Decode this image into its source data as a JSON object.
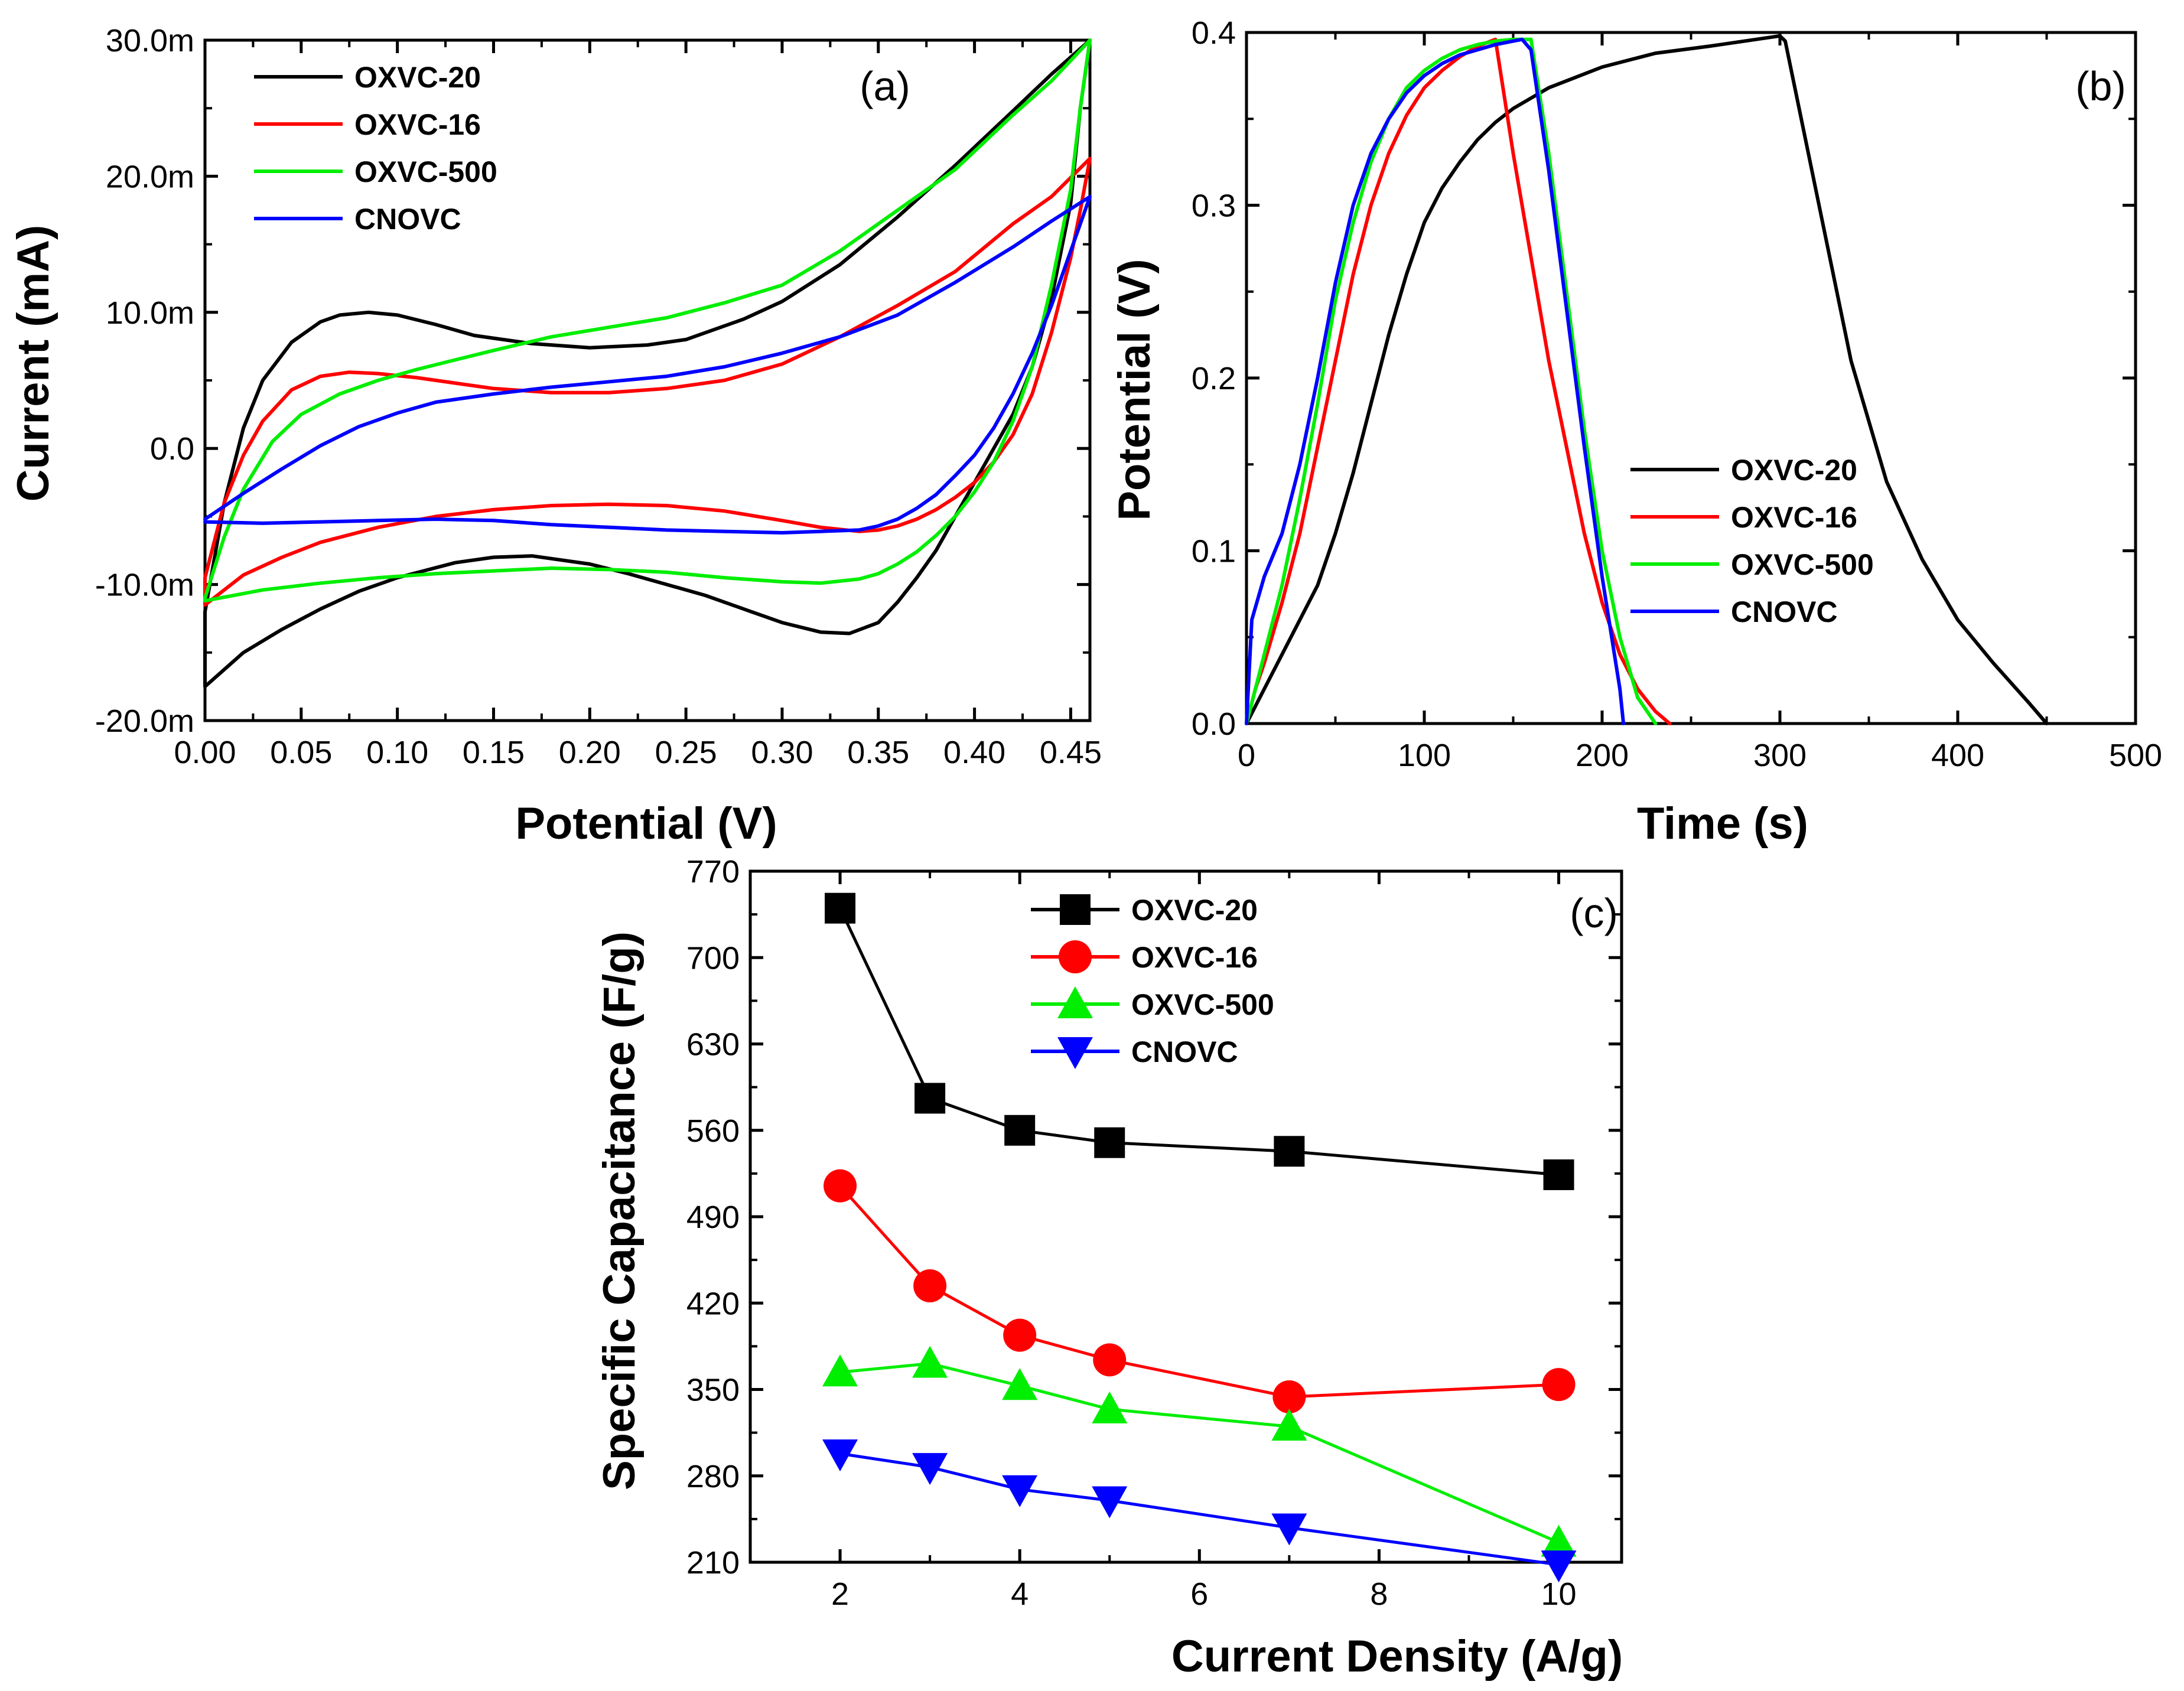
{
  "chart_data": [
    {
      "panel": "(a)",
      "type": "line",
      "xlabel": "Potential (V)",
      "ylabel": "Current (mA)",
      "xlim": [
        0,
        0.46
      ],
      "ylim": [
        -20.0,
        30.0
      ],
      "x_ticks": [
        "0.00",
        "0.05",
        "0.10",
        "0.15",
        "0.20",
        "0.25",
        "0.30",
        "0.35",
        "0.40",
        "0.45"
      ],
      "y_ticks": [
        "-20.0m",
        "-10.0m",
        "0.0",
        "10.0m",
        "20.0m",
        "30.0m"
      ],
      "legend_position": "top-left",
      "series": [
        {
          "name": "OXVC-20",
          "color": "#000000",
          "x": [
            0.0,
            0.01,
            0.02,
            0.03,
            0.045,
            0.06,
            0.07,
            0.085,
            0.1,
            0.12,
            0.14,
            0.17,
            0.2,
            0.23,
            0.25,
            0.28,
            0.3,
            0.33,
            0.36,
            0.39,
            0.42,
            0.44,
            0.46,
            0.455,
            0.45,
            0.44,
            0.43,
            0.42,
            0.41,
            0.4,
            0.39,
            0.38,
            0.37,
            0.36,
            0.35,
            0.335,
            0.32,
            0.3,
            0.28,
            0.26,
            0.24,
            0.22,
            0.2,
            0.17,
            0.15,
            0.13,
            0.1,
            0.08,
            0.06,
            0.04,
            0.02,
            0.0,
            0.0
          ],
          "y": [
            -12.0,
            -4.0,
            1.5,
            5.0,
            7.8,
            9.3,
            9.8,
            10.0,
            9.8,
            9.1,
            8.3,
            7.7,
            7.4,
            7.6,
            8.0,
            9.5,
            10.8,
            13.5,
            17.0,
            20.8,
            24.8,
            27.5,
            30.0,
            25.0,
            18.0,
            11.0,
            6.0,
            2.5,
            0.0,
            -2.5,
            -5.0,
            -7.5,
            -9.5,
            -11.3,
            -12.8,
            -13.6,
            -13.5,
            -12.8,
            -11.8,
            -10.8,
            -10.0,
            -9.2,
            -8.5,
            -7.9,
            -8.0,
            -8.4,
            -9.5,
            -10.5,
            -11.8,
            -13.3,
            -15.0,
            -17.5,
            -12.0
          ]
        },
        {
          "name": "OXVC-16",
          "color": "#ff0000",
          "x": [
            0.0,
            0.01,
            0.02,
            0.03,
            0.045,
            0.06,
            0.075,
            0.09,
            0.11,
            0.13,
            0.15,
            0.18,
            0.21,
            0.24,
            0.27,
            0.3,
            0.33,
            0.36,
            0.39,
            0.42,
            0.44,
            0.46,
            0.455,
            0.45,
            0.44,
            0.43,
            0.42,
            0.41,
            0.4,
            0.39,
            0.38,
            0.37,
            0.36,
            0.35,
            0.34,
            0.32,
            0.3,
            0.27,
            0.24,
            0.21,
            0.18,
            0.15,
            0.12,
            0.09,
            0.06,
            0.04,
            0.02,
            0.0,
            0.0
          ],
          "y": [
            -9.5,
            -4.0,
            -0.5,
            2.0,
            4.3,
            5.3,
            5.6,
            5.5,
            5.2,
            4.8,
            4.4,
            4.1,
            4.1,
            4.4,
            5.0,
            6.2,
            8.2,
            10.5,
            13.0,
            16.5,
            18.5,
            21.3,
            17.5,
            14.0,
            8.5,
            4.0,
            1.0,
            -1.0,
            -2.5,
            -3.6,
            -4.5,
            -5.2,
            -5.7,
            -6.0,
            -6.1,
            -5.8,
            -5.3,
            -4.6,
            -4.2,
            -4.1,
            -4.2,
            -4.5,
            -5.0,
            -5.8,
            -6.9,
            -8.0,
            -9.3,
            -11.5,
            -9.5
          ]
        },
        {
          "name": "OXVC-500",
          "color": "#00ee00",
          "x": [
            0.0,
            0.01,
            0.02,
            0.035,
            0.05,
            0.07,
            0.09,
            0.11,
            0.13,
            0.15,
            0.18,
            0.21,
            0.24,
            0.27,
            0.3,
            0.33,
            0.36,
            0.39,
            0.42,
            0.44,
            0.46,
            0.455,
            0.45,
            0.44,
            0.43,
            0.42,
            0.41,
            0.4,
            0.39,
            0.38,
            0.37,
            0.36,
            0.35,
            0.34,
            0.32,
            0.3,
            0.27,
            0.24,
            0.21,
            0.18,
            0.15,
            0.12,
            0.09,
            0.06,
            0.03,
            0.0,
            0.0
          ],
          "y": [
            -11.0,
            -6.5,
            -3.0,
            0.5,
            2.5,
            4.0,
            5.0,
            5.8,
            6.5,
            7.2,
            8.2,
            8.9,
            9.6,
            10.7,
            12.0,
            14.5,
            17.5,
            20.5,
            24.5,
            27.0,
            30.0,
            25.0,
            19.0,
            12.0,
            6.0,
            2.0,
            -1.0,
            -3.2,
            -5.0,
            -6.4,
            -7.6,
            -8.5,
            -9.2,
            -9.6,
            -9.9,
            -9.8,
            -9.5,
            -9.1,
            -8.9,
            -8.8,
            -9.0,
            -9.2,
            -9.5,
            -9.9,
            -10.4,
            -11.2,
            -11.0
          ]
        },
        {
          "name": "CNOVC",
          "color": "#0000ff",
          "x": [
            0.0,
            0.02,
            0.04,
            0.06,
            0.08,
            0.1,
            0.12,
            0.15,
            0.18,
            0.21,
            0.24,
            0.27,
            0.3,
            0.33,
            0.36,
            0.39,
            0.42,
            0.44,
            0.46,
            0.45,
            0.44,
            0.43,
            0.42,
            0.41,
            0.4,
            0.39,
            0.38,
            0.37,
            0.36,
            0.35,
            0.34,
            0.32,
            0.3,
            0.27,
            0.24,
            0.21,
            0.18,
            0.15,
            0.12,
            0.09,
            0.06,
            0.03,
            0.0
          ],
          "y": [
            -5.2,
            -3.3,
            -1.5,
            0.2,
            1.6,
            2.6,
            3.4,
            4.0,
            4.5,
            4.9,
            5.3,
            6.0,
            7.0,
            8.2,
            9.8,
            12.2,
            14.8,
            16.7,
            18.5,
            14.5,
            10.5,
            7.0,
            4.0,
            1.5,
            -0.5,
            -2.0,
            -3.4,
            -4.4,
            -5.2,
            -5.7,
            -6.0,
            -6.1,
            -6.2,
            -6.1,
            -6.0,
            -5.8,
            -5.6,
            -5.3,
            -5.2,
            -5.3,
            -5.4,
            -5.5,
            -5.4
          ]
        }
      ]
    },
    {
      "panel": "(b)",
      "type": "line",
      "xlabel": "Time (s)",
      "ylabel": "Potential (V)",
      "xlim": [
        0,
        500
      ],
      "ylim": [
        0.0,
        0.4
      ],
      "x_ticks": [
        "0",
        "100",
        "200",
        "300",
        "400",
        "500"
      ],
      "y_ticks": [
        "0.0",
        "0.1",
        "0.2",
        "0.3",
        "0.4"
      ],
      "legend_position": "bottom-right",
      "series": [
        {
          "name": "OXVC-20",
          "color": "#000000",
          "x": [
            0,
            10,
            20,
            30,
            40,
            50,
            60,
            70,
            80,
            90,
            100,
            110,
            120,
            130,
            140,
            150,
            170,
            200,
            230,
            260,
            300,
            303,
            310,
            320,
            340,
            360,
            380,
            400,
            420,
            440,
            450
          ],
          "y": [
            0.0,
            0.02,
            0.04,
            0.06,
            0.08,
            0.11,
            0.145,
            0.185,
            0.225,
            0.26,
            0.29,
            0.31,
            0.325,
            0.338,
            0.348,
            0.356,
            0.368,
            0.38,
            0.388,
            0.392,
            0.398,
            0.395,
            0.36,
            0.31,
            0.21,
            0.14,
            0.095,
            0.06,
            0.035,
            0.012,
            0.0
          ]
        },
        {
          "name": "OXVC-16",
          "color": "#ff0000",
          "x": [
            0,
            5,
            10,
            20,
            30,
            40,
            50,
            60,
            70,
            80,
            90,
            100,
            110,
            120,
            130,
            140,
            150,
            160,
            170,
            180,
            190,
            200,
            210,
            220,
            230,
            238
          ],
          "y": [
            0.0,
            0.02,
            0.035,
            0.07,
            0.11,
            0.16,
            0.21,
            0.26,
            0.3,
            0.33,
            0.352,
            0.368,
            0.378,
            0.386,
            0.392,
            0.396,
            0.33,
            0.27,
            0.21,
            0.16,
            0.11,
            0.07,
            0.04,
            0.02,
            0.007,
            0.0
          ]
        },
        {
          "name": "OXVC-500",
          "color": "#00ee00",
          "x": [
            0,
            5,
            10,
            20,
            30,
            40,
            50,
            60,
            70,
            80,
            90,
            100,
            110,
            120,
            130,
            140,
            150,
            160,
            170,
            180,
            190,
            200,
            210,
            220,
            230
          ],
          "y": [
            0.0,
            0.02,
            0.04,
            0.08,
            0.13,
            0.185,
            0.245,
            0.29,
            0.325,
            0.35,
            0.368,
            0.378,
            0.385,
            0.39,
            0.393,
            0.395,
            0.396,
            0.396,
            0.33,
            0.25,
            0.17,
            0.1,
            0.05,
            0.015,
            0.0
          ]
        },
        {
          "name": "CNOVC",
          "color": "#0000ff",
          "x": [
            0,
            3,
            10,
            20,
            30,
            40,
            50,
            60,
            70,
            80,
            90,
            100,
            110,
            120,
            130,
            140,
            150,
            155,
            160,
            170,
            180,
            190,
            200,
            210,
            212
          ],
          "y": [
            0.0,
            0.06,
            0.085,
            0.11,
            0.15,
            0.2,
            0.255,
            0.3,
            0.33,
            0.35,
            0.365,
            0.375,
            0.382,
            0.387,
            0.39,
            0.393,
            0.395,
            0.396,
            0.39,
            0.32,
            0.24,
            0.16,
            0.085,
            0.02,
            0.0
          ]
        }
      ]
    },
    {
      "panel": "(c)",
      "type": "line",
      "xlabel": "Current Density (A/g)",
      "ylabel": "Specific Capacitance (F/g)",
      "xlim": [
        1,
        10.7
      ],
      "ylim": [
        210,
        770
      ],
      "x_ticks": [
        "2",
        "4",
        "6",
        "8",
        "10"
      ],
      "y_ticks": [
        "210",
        "280",
        "350",
        "420",
        "490",
        "560",
        "630",
        "700",
        "770"
      ],
      "legend_position": "top-center",
      "series": [
        {
          "name": "OXVC-20",
          "color": "#000000",
          "marker": "square",
          "x": [
            2,
            3,
            4,
            5,
            7,
            10
          ],
          "y": [
            740,
            586,
            560,
            550,
            543,
            524
          ]
        },
        {
          "name": "OXVC-16",
          "color": "#ff0000",
          "marker": "circle",
          "x": [
            2,
            3,
            4,
            5,
            7,
            10
          ],
          "y": [
            515,
            434,
            394,
            374,
            344,
            354
          ]
        },
        {
          "name": "OXVC-500",
          "color": "#00ee00",
          "marker": "triangle-up",
          "x": [
            2,
            3,
            4,
            5,
            7,
            10
          ],
          "y": [
            364,
            371,
            353,
            334,
            320,
            226
          ]
        },
        {
          "name": "CNOVC",
          "color": "#0000ff",
          "marker": "triangle-down",
          "x": [
            2,
            3,
            4,
            5,
            7,
            10
          ],
          "y": [
            298,
            287,
            269,
            260,
            238,
            208
          ]
        }
      ]
    }
  ]
}
